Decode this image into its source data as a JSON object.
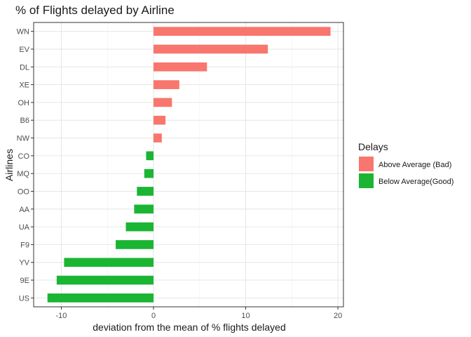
{
  "chart_data": {
    "type": "bar",
    "orientation": "horizontal",
    "title": "% of Flights delayed by Airline",
    "xlabel": "deviation from the mean of % flights delayed",
    "ylabel": "Airlines",
    "xlim": [
      -13,
      20.6
    ],
    "x_ticks": [
      -10,
      0,
      10,
      20
    ],
    "categories": [
      "WN",
      "EV",
      "DL",
      "XE",
      "OH",
      "B6",
      "NW",
      "CO",
      "MQ",
      "OO",
      "AA",
      "UA",
      "F9",
      "YV",
      "9E",
      "US"
    ],
    "values": [
      19.2,
      12.4,
      5.8,
      2.8,
      2.0,
      1.3,
      0.9,
      -0.8,
      -1.0,
      -1.8,
      -2.1,
      -3.0,
      -4.1,
      -9.7,
      -10.5,
      -11.5
    ],
    "groups": [
      "Above Average (Bad)",
      "Above Average (Bad)",
      "Above Average (Bad)",
      "Above Average (Bad)",
      "Above Average (Bad)",
      "Above Average (Bad)",
      "Above Average (Bad)",
      "Below Average(Good)",
      "Below Average(Good)",
      "Below Average(Good)",
      "Below Average(Good)",
      "Below Average(Good)",
      "Below Average(Good)",
      "Below Average(Good)",
      "Below Average(Good)",
      "Below Average(Good)"
    ],
    "grid": true,
    "legend": {
      "title": "Delays",
      "position": "right",
      "entries": [
        {
          "label": "Above Average (Bad)",
          "color": "#F8766D"
        },
        {
          "label": "Below Average(Good)",
          "color": "#1AB533"
        }
      ]
    }
  }
}
